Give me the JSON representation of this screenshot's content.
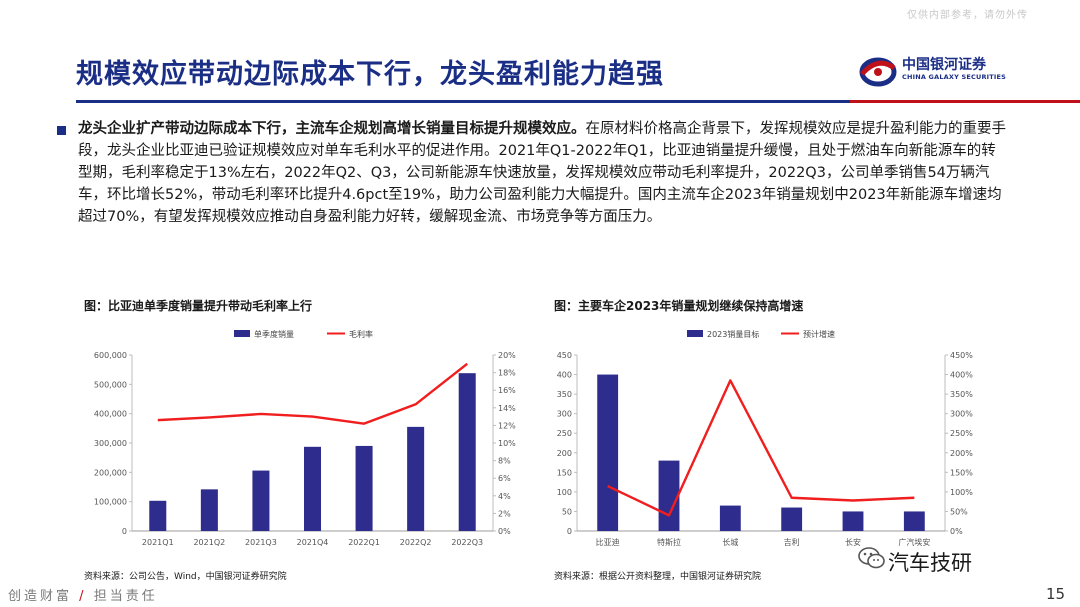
{
  "header": {
    "watermark": "仅供内部参考，请勿外传",
    "title": "规模效应带动边际成本下行，龙头盈利能力趋强",
    "logo_cn": "中国银河证券",
    "logo_en": "CHINA GALAXY SECURITIES"
  },
  "body": {
    "lead": "龙头企业扩产带动边际成本下行，主流车企规划高增长销量目标提升规模效应。",
    "text": "在原材料价格高企背景下，发挥规模效应是提升盈利能力的重要手段，龙头企业比亚迪已验证规模效应对单车毛利水平的促进作用。2021年Q1-2022年Q1，比亚迪销量提升缓慢，且处于燃油车向新能源车的转型期，毛利率稳定于13%左右，2022年Q2、Q3，公司新能源车快速放量，发挥规模效应带动毛利率提升，2022Q3，公司单季销售54万辆汽车，环比增长52%，带动毛利率环比提升4.6pct至19%，助力公司盈利能力大幅提升。国内主流车企2023年销量规划中2023年新能源车增速均超过70%，有望发挥规模效应推动自身盈利能力好转，缓解现金流、市场竞争等方面压力。"
  },
  "figure1": {
    "title": "图：比亚迪单季度销量提升带动毛利率上行",
    "source": "资料来源：公司公告，Wind，中国银河证券研究院"
  },
  "figure2": {
    "title": "图：主要车企2023年销量规划继续保持高增速",
    "source": "资料来源：根据公开资料整理，中国银河证券研究院"
  },
  "footer": {
    "left_a": "创造财富",
    "slash": "/",
    "left_b": "担当责任",
    "brand": "汽车技研",
    "page": "15"
  },
  "colors": {
    "bar": "#2e2c8c",
    "line": "#f01e1e",
    "title": "#1b2e86",
    "accent_red": "#c0101a"
  },
  "chart_data": [
    {
      "type": "bar+line",
      "categories": [
        "2021Q1",
        "2021Q2",
        "2021Q3",
        "2021Q4",
        "2022Q1",
        "2022Q2",
        "2022Q3"
      ],
      "series": [
        {
          "name": "单季度销量",
          "type": "bar",
          "axis": "left",
          "values": [
            103000,
            142000,
            206000,
            287000,
            290000,
            355000,
            538000
          ]
        },
        {
          "name": "毛利率",
          "type": "line",
          "axis": "right",
          "values": [
            12.6,
            12.9,
            13.3,
            13.0,
            12.2,
            14.4,
            19.0
          ]
        }
      ],
      "y_left": {
        "min": 0,
        "max": 600000,
        "ticks": [
          "0",
          "100,000",
          "200,000",
          "300,000",
          "400,000",
          "500,000",
          "600,000"
        ]
      },
      "y_right": {
        "min": 0,
        "max": 20,
        "ticks": [
          "0%",
          "2%",
          "4%",
          "6%",
          "8%",
          "10%",
          "12%",
          "14%",
          "16%",
          "18%",
          "20%"
        ]
      },
      "legend": "top"
    },
    {
      "type": "bar+line",
      "categories": [
        "比亚迪",
        "特斯拉",
        "长城",
        "吉利",
        "长安",
        "广汽埃安"
      ],
      "series": [
        {
          "name": "2023销量目标",
          "type": "bar",
          "axis": "left",
          "values": [
            400,
            180,
            65,
            60,
            50,
            50
          ]
        },
        {
          "name": "预计增速",
          "type": "line",
          "axis": "right",
          "values": [
            115,
            40,
            385,
            85,
            78,
            85
          ]
        }
      ],
      "y_left": {
        "min": 0,
        "max": 450,
        "ticks": [
          "0",
          "50",
          "100",
          "150",
          "200",
          "250",
          "300",
          "350",
          "400",
          "450"
        ]
      },
      "y_right": {
        "min": 0,
        "max": 450,
        "ticks": [
          "0%",
          "50%",
          "100%",
          "150%",
          "200%",
          "250%",
          "300%",
          "350%",
          "400%",
          "450%"
        ]
      },
      "legend": "top"
    }
  ]
}
